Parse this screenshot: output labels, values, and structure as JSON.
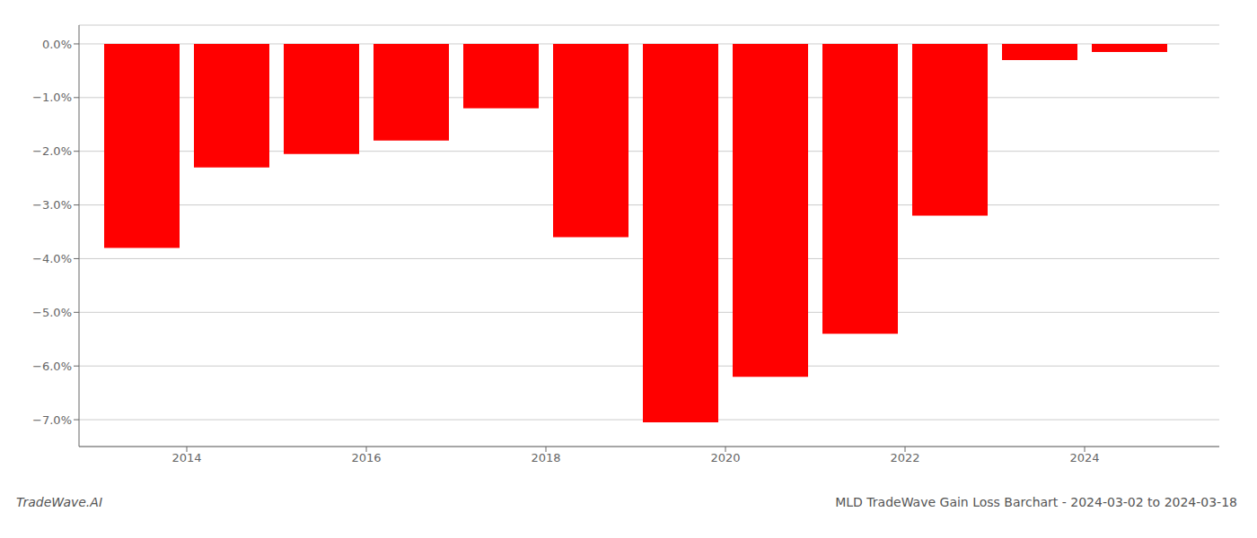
{
  "chart_data": {
    "type": "bar",
    "x": [
      2013.5,
      2014.5,
      2015.5,
      2016.5,
      2017.5,
      2018.5,
      2019.5,
      2020.5,
      2021.5,
      2022.5,
      2023.5,
      2024.5
    ],
    "values": [
      -3.8,
      -2.3,
      -2.05,
      -1.8,
      -1.2,
      -3.6,
      -7.05,
      -6.2,
      -5.4,
      -3.2,
      -0.3,
      -0.15
    ],
    "color": "#ff0000",
    "xlim": [
      2012.8,
      2025.5
    ],
    "xticks": [
      2014,
      2016,
      2018,
      2020,
      2022,
      2024
    ],
    "ylim": [
      -7.5,
      0.35
    ],
    "yticks": [
      {
        "value": 0.0,
        "label": "0.0%"
      },
      {
        "value": -1.0,
        "label": "−1.0%"
      },
      {
        "value": -2.0,
        "label": "−2.0%"
      },
      {
        "value": -3.0,
        "label": "−3.0%"
      },
      {
        "value": -4.0,
        "label": "−4.0%"
      },
      {
        "value": -5.0,
        "label": "−5.0%"
      },
      {
        "value": -6.0,
        "label": "−6.0%"
      },
      {
        "value": -7.0,
        "label": "−7.0%"
      }
    ],
    "grid": true,
    "annotations": [
      "TradeWave.AI",
      "MLD TradeWave Gain Loss Barchart - 2024-03-02 to 2024-03-18"
    ]
  }
}
